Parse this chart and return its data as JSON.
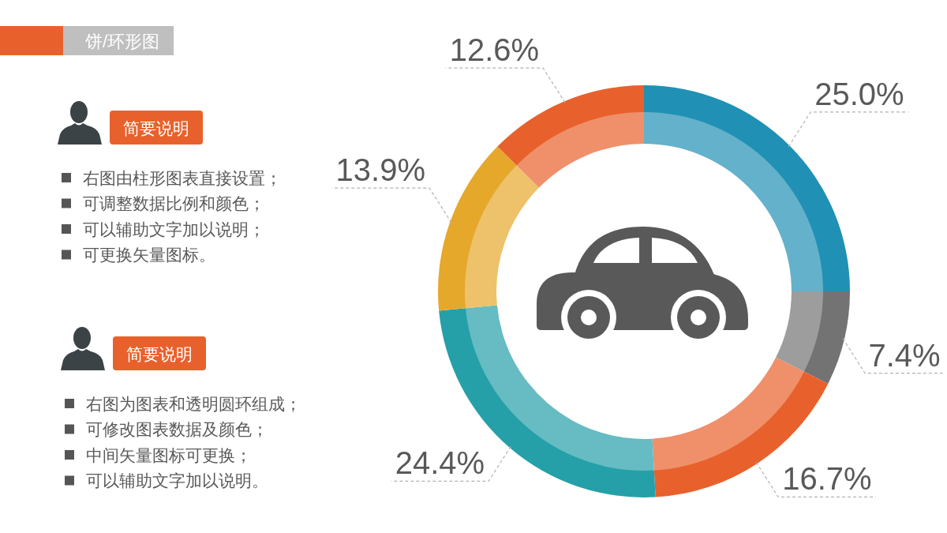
{
  "chart_data": {
    "type": "donut",
    "title": "饼/环形图",
    "categories": [
      null,
      null,
      null,
      null,
      null,
      null
    ],
    "values": [
      25.0,
      7.4,
      16.7,
      24.4,
      13.9,
      12.6
    ],
    "colors": [
      "#2190b5",
      "#737373",
      "#e8612c",
      "#25a0a8",
      "#e6a82b",
      "#e8612c"
    ],
    "value_labels": [
      "25.0%",
      "7.4%",
      "16.7%",
      "24.4%",
      "13.9%",
      "12.6%"
    ],
    "annotations": [
      "简要说明",
      "右图由柱形图表直接设置；",
      "可调整数据比例和颜色；",
      "可以辅助文字加以说明；",
      "可更换矢量图标。",
      "简要说明",
      "右图为图表和透明圆环组成；",
      "可修改图表数据及颜色；",
      "中间矢量图标可更换；",
      "可以辅助文字加以说明。"
    ]
  }
}
